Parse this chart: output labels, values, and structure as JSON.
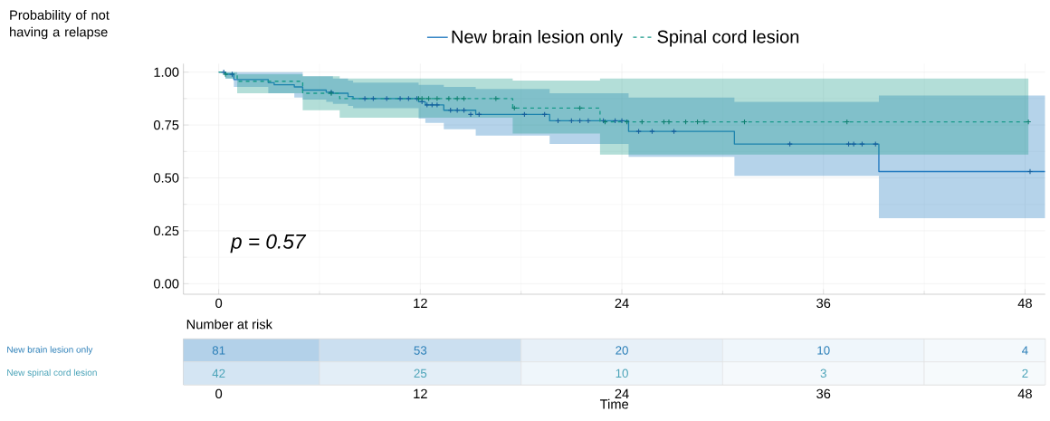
{
  "chart_data": [
    {
      "type": "step",
      "ylabel": "Probability of not having a relapse",
      "xlim": [
        -2.1,
        49.2
      ],
      "ylim": [
        -0.05,
        1.04
      ],
      "xticks": [
        0,
        12,
        24,
        36,
        48
      ],
      "yticks": [
        {
          "value": 0,
          "label": "0.00"
        },
        {
          "value": 0.25,
          "label": "0.25"
        },
        {
          "value": 0.5,
          "label": "0.50"
        },
        {
          "value": 0.75,
          "label": "0.75"
        },
        {
          "value": 1,
          "label": "1.00"
        }
      ],
      "grid": true,
      "legend": "top",
      "annotations": [
        "p = 0.57"
      ],
      "series": [
        {
          "name": "New brain lesion only",
          "type": "step",
          "color": "#1f78bf",
          "line_style": "solid",
          "x": [
            0,
            0.4,
            0.9,
            2.95,
            3.3,
            4.5,
            5.0,
            6.4,
            6.8,
            7.7,
            8.0,
            11.9,
            12.3,
            13.4,
            15.3,
            19.7,
            24.4,
            30.7,
            39.3,
            49.2
          ],
          "values": [
            1,
            0.99,
            0.965,
            0.95,
            0.94,
            0.93,
            0.915,
            0.905,
            0.9,
            0.885,
            0.875,
            0.86,
            0.845,
            0.82,
            0.8,
            0.77,
            0.72,
            0.66,
            0.53,
            0.53
          ],
          "lower": [
            1,
            0.97,
            0.93,
            0.9,
            0.9,
            0.88,
            0.87,
            0.86,
            0.85,
            0.84,
            0.83,
            0.78,
            0.76,
            0.73,
            0.7,
            0.66,
            0.6,
            0.51,
            0.31,
            0.31
          ],
          "upper": [
            1,
            1,
            1,
            1,
            1,
            1,
            0.98,
            0.98,
            0.97,
            0.96,
            0.95,
            0.94,
            0.94,
            0.93,
            0.92,
            0.9,
            0.88,
            0.86,
            0.89,
            0.89
          ]
        },
        {
          "name": "Spinal cord lesion",
          "type": "step",
          "color": "#199a8a",
          "line_style": "dashed",
          "x": [
            0,
            0.4,
            1.1,
            5.0,
            7.2,
            17.5,
            22.7,
            48.2
          ],
          "values": [
            1,
            0.99,
            0.957,
            0.9,
            0.875,
            0.83,
            0.765,
            0.765
          ],
          "lower": [
            1,
            0.97,
            0.9,
            0.82,
            0.785,
            0.71,
            0.61,
            0.61
          ],
          "upper": [
            1,
            1,
            0.99,
            0.98,
            0.97,
            0.96,
            0.97,
            0.97
          ]
        },
        {
          "type": "scatter",
          "color": "#155f9c",
          "marker": "cross",
          "x": [
            0.3,
            0.8,
            6.7,
            8.7,
            9.2,
            10,
            10.8,
            11.3,
            11.8,
            12.1,
            12.4,
            12.7,
            13.0,
            13.8,
            14.2,
            14.6,
            15.0,
            15.5,
            18.2,
            19.4,
            20.2,
            21.0,
            21.5,
            22.0,
            22.9,
            23.6,
            24.0,
            25.0,
            25.8,
            27.1,
            34.0,
            37.5,
            37.8,
            38.3,
            39.1,
            48.3
          ],
          "values": [
            1,
            0.99,
            0.905,
            0.875,
            0.875,
            0.875,
            0.875,
            0.875,
            0.875,
            0.86,
            0.845,
            0.845,
            0.845,
            0.82,
            0.82,
            0.82,
            0.8,
            0.8,
            0.8,
            0.8,
            0.77,
            0.77,
            0.77,
            0.77,
            0.77,
            0.77,
            0.77,
            0.72,
            0.72,
            0.72,
            0.66,
            0.66,
            0.66,
            0.66,
            0.66,
            0.53
          ]
        },
        {
          "type": "scatter",
          "color": "#0f8070",
          "marker": "cross",
          "x": [
            0.4,
            6.7,
            11.9,
            12.1,
            12.5,
            13.0,
            13.7,
            14.2,
            14.6,
            16.5,
            17.6,
            21.5,
            23.0,
            24.3,
            25.2,
            26.5,
            26.8,
            27.8,
            28.5,
            28.9,
            31.3,
            37.4,
            48.2
          ],
          "values": [
            0.99,
            0.9,
            0.875,
            0.875,
            0.875,
            0.875,
            0.875,
            0.875,
            0.875,
            0.875,
            0.83,
            0.83,
            0.765,
            0.765,
            0.765,
            0.765,
            0.765,
            0.765,
            0.765,
            0.765,
            0.765,
            0.765,
            0.765
          ]
        }
      ]
    },
    {
      "type": "heatmap",
      "title": "Number at risk",
      "xlabel": "Time",
      "categories": [
        "0",
        "12",
        "24",
        "36",
        "48"
      ],
      "y_categories": [
        "New brain lesion only",
        "New spinal cord lesion"
      ],
      "cells": [
        [
          81,
          53,
          20,
          10,
          4
        ],
        [
          42,
          25,
          10,
          3,
          2
        ]
      ],
      "data_labels": true
    }
  ]
}
